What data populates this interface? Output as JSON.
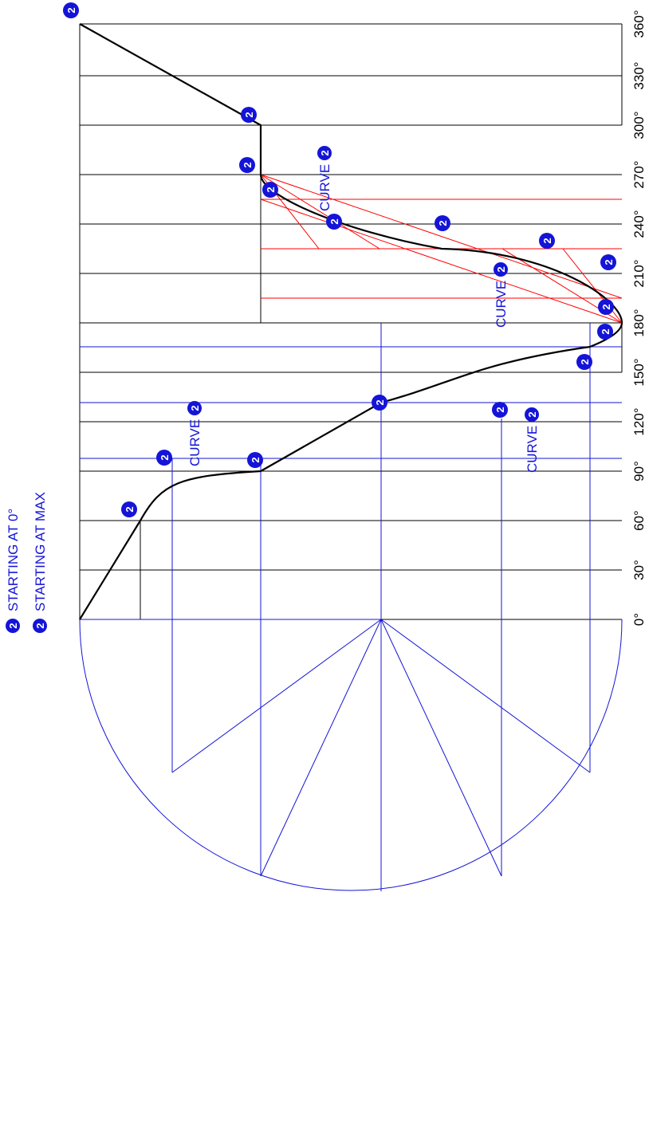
{
  "legend": {
    "items": [
      {
        "marker": "2",
        "label": "STARTING AT 0°"
      },
      {
        "marker": "2",
        "label": "STARTING AT MAX"
      }
    ]
  },
  "axis": {
    "tick_labels": [
      "0°",
      "30°",
      "60°",
      "90°",
      "120°",
      "150°",
      "180°",
      "210°",
      "240°",
      "270°",
      "300°",
      "330°",
      "360°"
    ]
  },
  "annotations": {
    "curve_label": "CURVE",
    "marker_text": "2"
  },
  "colors": {
    "profile": "#000000",
    "rise_construction": "#1414d8",
    "fall_construction": "#ff0000",
    "marker_fill": "#1414d8"
  }
}
